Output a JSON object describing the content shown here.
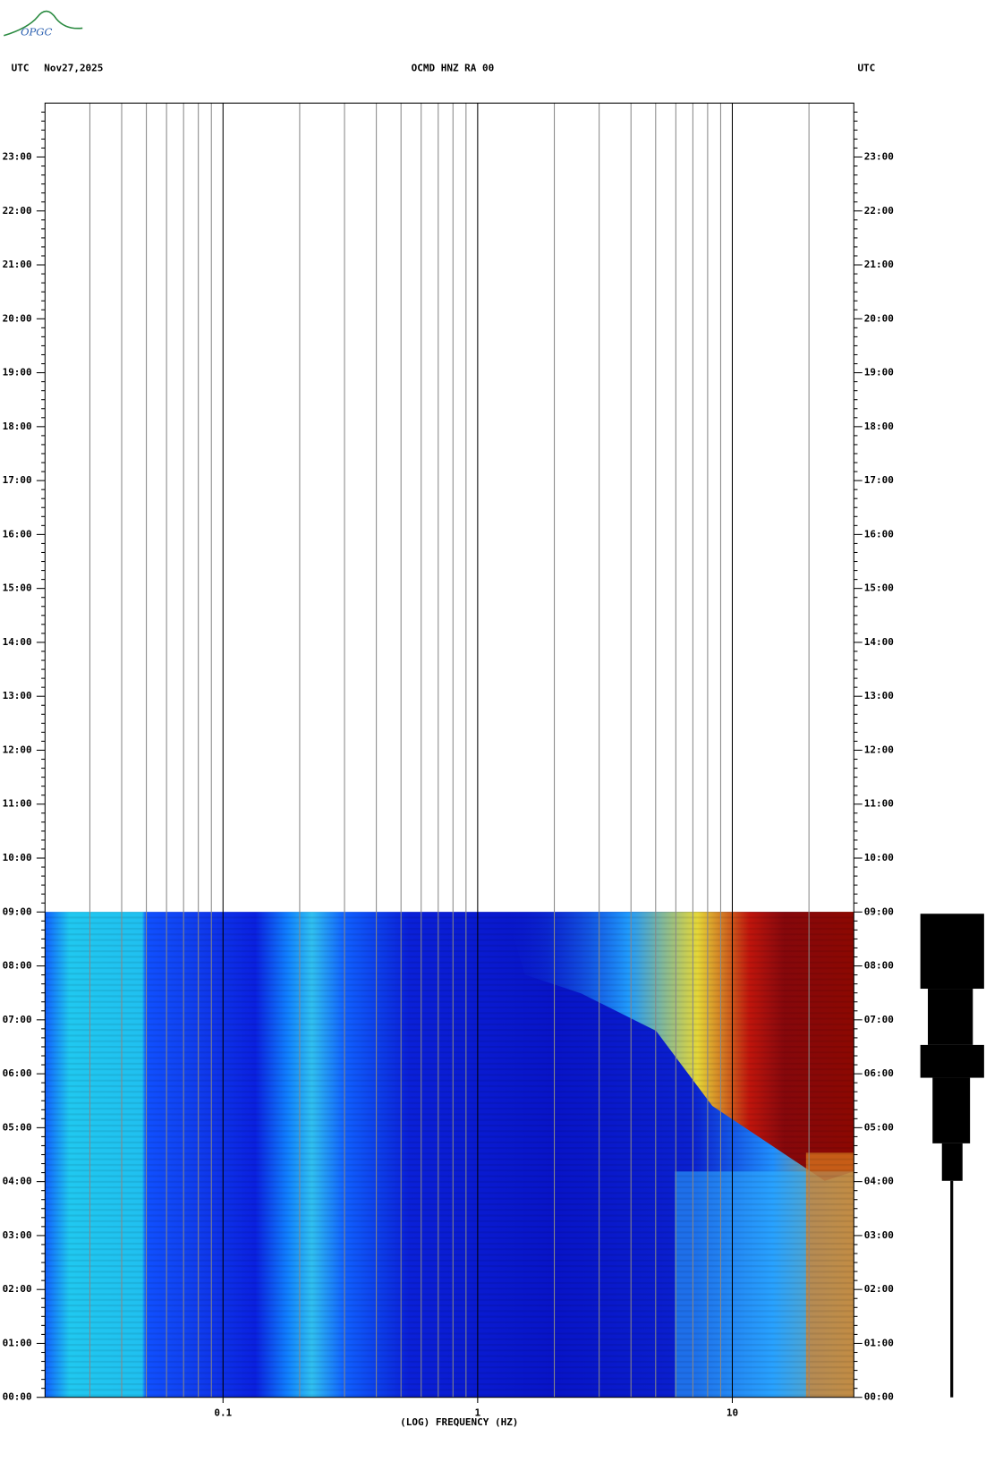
{
  "logo": "OPGC",
  "chart_data": {
    "type": "spectrogram",
    "title": "OCMD HNZ RA 00",
    "time_zone": "UTC",
    "date": "Nov27,2025",
    "x_label": "(LOG) FREQUENCY (HZ)",
    "xlim": [
      0.02,
      30
    ],
    "xticks": [
      0.1,
      1,
      10
    ],
    "x_log": true,
    "minor_grid": true,
    "ylim": [
      0,
      24
    ],
    "yticks": [
      {
        "value": 0,
        "label": "00:00"
      },
      {
        "value": 1,
        "label": "01:00"
      },
      {
        "value": 2,
        "label": "02:00"
      },
      {
        "value": 3,
        "label": "03:00"
      },
      {
        "value": 4,
        "label": "04:00"
      },
      {
        "value": 5,
        "label": "05:00"
      },
      {
        "value": 6,
        "label": "06:00"
      },
      {
        "value": 7,
        "label": "07:00"
      },
      {
        "value": 8,
        "label": "08:00"
      },
      {
        "value": 9,
        "label": "09:00"
      },
      {
        "value": 10,
        "label": "10:00"
      },
      {
        "value": 11,
        "label": "11:00"
      },
      {
        "value": 12,
        "label": "12:00"
      },
      {
        "value": 13,
        "label": "13:00"
      },
      {
        "value": 14,
        "label": "14:00"
      },
      {
        "value": 15,
        "label": "15:00"
      },
      {
        "value": 16,
        "label": "16:00"
      },
      {
        "value": 17,
        "label": "17:00"
      },
      {
        "value": 18,
        "label": "18:00"
      },
      {
        "value": 19,
        "label": "19:00"
      },
      {
        "value": 20,
        "label": "20:00"
      },
      {
        "value": 21,
        "label": "21:00"
      },
      {
        "value": 22,
        "label": "22:00"
      },
      {
        "value": 23,
        "label": "23:00"
      }
    ]
  }
}
